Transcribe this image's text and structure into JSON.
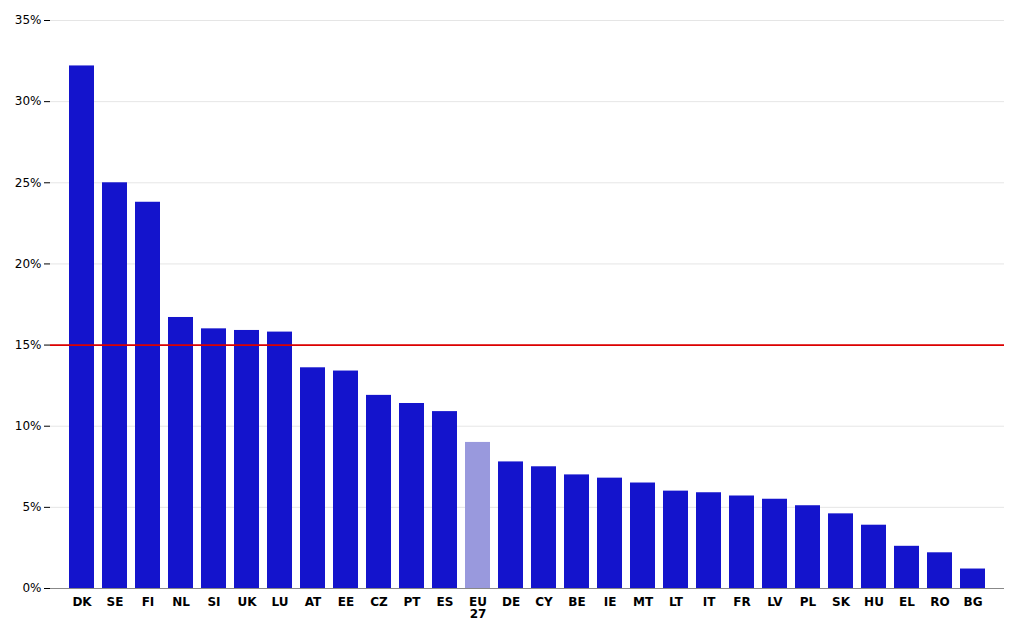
{
  "chart_data": {
    "type": "bar",
    "categories": [
      "DK",
      "SE",
      "FI",
      "NL",
      "SI",
      "UK",
      "LU",
      "AT",
      "EE",
      "CZ",
      "PT",
      "ES",
      "EU\n27",
      "DE",
      "CY",
      "BE",
      "IE",
      "MT",
      "LT",
      "IT",
      "FR",
      "LV",
      "PL",
      "SK",
      "HU",
      "EL",
      "RO",
      "BG"
    ],
    "values": [
      32.2,
      25.0,
      23.8,
      16.7,
      16.0,
      15.9,
      15.8,
      13.6,
      13.4,
      11.9,
      11.4,
      10.9,
      9.0,
      7.8,
      7.5,
      7.0,
      6.8,
      6.5,
      6.0,
      5.9,
      5.7,
      5.5,
      5.1,
      4.6,
      3.9,
      2.6,
      2.2,
      1.2
    ],
    "colors": [
      "#1414cc",
      "#1414cc",
      "#1414cc",
      "#1414cc",
      "#1414cc",
      "#1414cc",
      "#1414cc",
      "#1414cc",
      "#1414cc",
      "#1414cc",
      "#1414cc",
      "#1414cc",
      "#9999dd",
      "#1414cc",
      "#1414cc",
      "#1414cc",
      "#1414cc",
      "#1414cc",
      "#1414cc",
      "#1414cc",
      "#1414cc",
      "#1414cc",
      "#1414cc",
      "#1414cc",
      "#1414cc",
      "#1414cc",
      "#1414cc",
      "#1414cc"
    ],
    "reference_line": {
      "y": 15.0,
      "color": "#dd0000"
    },
    "ylim": [
      0,
      35
    ],
    "yticks": [
      {
        "value": 0,
        "label": "0%"
      },
      {
        "value": 5,
        "label": "5%"
      },
      {
        "value": 10,
        "label": "10%"
      },
      {
        "value": 15,
        "label": "15%"
      },
      {
        "value": 20,
        "label": "20%"
      },
      {
        "value": 25,
        "label": "25%"
      },
      {
        "value": 30,
        "label": "30%"
      },
      {
        "value": 35,
        "label": "35%"
      }
    ],
    "grid": true
  }
}
